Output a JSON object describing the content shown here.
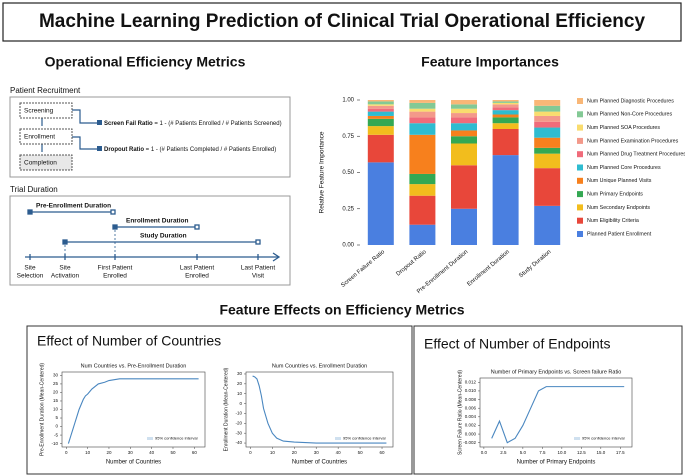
{
  "title": "Machine Learning Prediction of Clinical Trial Operational Efficiency",
  "metrics": {
    "heading": "Operational Efficiency Metrics",
    "recruitment": {
      "label": "Patient Recruitment",
      "nodes": [
        "Screening",
        "Enrollment",
        "Completion"
      ],
      "formulas": [
        {
          "name": "Screen Fail Ratio",
          "expr": "= 1 - (# Patients Enrolled / # Patients Screened)"
        },
        {
          "name": "Dropout Ratio",
          "expr": "= 1 - (# Patients Completed / # Patients Enrolled)"
        }
      ]
    },
    "duration": {
      "label": "Trial Duration",
      "spans": [
        "Pre-Enrollment Duration",
        "Enrollment Duration",
        "Study Duration"
      ],
      "milestones": [
        [
          "Site",
          "Selection"
        ],
        [
          "Site",
          "Activation"
        ],
        [
          "First Patient",
          "Enrolled"
        ],
        [
          "Last Patient",
          "Enrolled"
        ],
        [
          "Last Patient",
          "Visit"
        ]
      ]
    }
  },
  "importances_heading": "Feature Importances",
  "effects": {
    "heading": "Feature Effects on Efficiency Metrics",
    "panels": [
      "Effect of Number of Countries",
      "Effect of Number of Endpoints"
    ]
  },
  "chart_data": [
    {
      "type": "bar",
      "stacked": true,
      "y_label": "Relative Feature Importance",
      "categories": [
        "Screen Failure Ratio",
        "Dropout Ratio",
        "Pre-Enrollment Duration",
        "Enrollment Duration",
        "Study Duration"
      ],
      "ylim": [
        0,
        1
      ],
      "yticks": [
        {
          "value": 0,
          "label": "0.00"
        },
        0.25,
        {
          "value": 0.5,
          "label": "0.50"
        },
        0.75,
        {
          "value": 1,
          "label": "1.00"
        }
      ],
      "series": [
        {
          "name": "Planned Patient Enrollment",
          "color": "#4a7fe0",
          "values": [
            0.57,
            0.14,
            0.25,
            0.62,
            0.27
          ]
        },
        {
          "name": "Num Eligibility Criteria",
          "color": "#e8473a",
          "values": [
            0.19,
            0.2,
            0.3,
            0.18,
            0.26
          ]
        },
        {
          "name": "Num Secondary Endpoints",
          "color": "#f2bd1d",
          "values": [
            0.06,
            0.08,
            0.15,
            0.04,
            0.1
          ]
        },
        {
          "name": "Num Primary Endpoints",
          "color": "#34a853",
          "values": [
            0.05,
            0.07,
            0.05,
            0.04,
            0.04
          ]
        },
        {
          "name": "Num Unique Planned Visits",
          "color": "#f7801d",
          "values": [
            0.02,
            0.27,
            0.04,
            0.02,
            0.07
          ]
        },
        {
          "name": "Num Planned Core Procedures",
          "color": "#2fbcd0",
          "values": [
            0.03,
            0.08,
            0.05,
            0.03,
            0.07
          ]
        },
        {
          "name": "Num Planned Drug Treatment Procedures",
          "color": "#f06b7a",
          "values": [
            0.02,
            0.04,
            0.04,
            0.02,
            0.04
          ]
        },
        {
          "name": "Num Planned Examination Procedures",
          "color": "#f3998a",
          "values": [
            0.02,
            0.04,
            0.03,
            0.02,
            0.04
          ]
        },
        {
          "name": "Num Planned SOA Procedures",
          "color": "#f9dc6e",
          "values": [
            0.01,
            0.02,
            0.03,
            0.01,
            0.03
          ]
        },
        {
          "name": "Num Planned Non-Core Procedures",
          "color": "#83c995",
          "values": [
            0.02,
            0.04,
            0.03,
            0.01,
            0.04
          ]
        },
        {
          "name": "Num Planned Diagnostic Procedures",
          "color": "#f9b777",
          "values": [
            0.01,
            0.02,
            0.03,
            0.01,
            0.04
          ]
        }
      ]
    },
    {
      "type": "line",
      "title": "Num Countries vs. Pre-Enrollment Duration",
      "x_label": "Number of Countries",
      "y_label": "Pre-Enrollment Duration (Mean-Centered)",
      "ci_label": "95% confidence interval",
      "color": "#4a87c0",
      "x": [
        1,
        2,
        3,
        4,
        5,
        6,
        7,
        8,
        9,
        10,
        12,
        15,
        18,
        20,
        25,
        30,
        40,
        50,
        62
      ],
      "values": [
        -10,
        -6,
        -2,
        2,
        6,
        10,
        13,
        16,
        18,
        19,
        22,
        25,
        26,
        27,
        28,
        28,
        28,
        28,
        28
      ],
      "xlim": [
        -2,
        65
      ],
      "xticks": [
        0,
        10,
        20,
        30,
        40,
        50,
        60
      ],
      "ylim": [
        -12,
        32
      ],
      "yticks": [
        -10,
        -5,
        0,
        5,
        10,
        15,
        20,
        25,
        30
      ]
    },
    {
      "type": "line",
      "title": "Num Countries vs. Enrollment Duration",
      "x_label": "Number of Countries",
      "y_label": "Enrollment Duration (Mean-Centered)",
      "ci_label": "95% confidence interval",
      "color": "#4a87c0",
      "x": [
        1,
        2,
        3,
        4,
        5,
        6,
        8,
        10,
        12,
        15,
        20,
        30,
        40,
        50,
        62
      ],
      "values": [
        28,
        27,
        25,
        18,
        8,
        -5,
        -20,
        -30,
        -35,
        -38,
        -39,
        -40,
        -40,
        -40,
        -40
      ],
      "xlim": [
        -2,
        65
      ],
      "xticks": [
        0,
        10,
        20,
        30,
        40,
        50,
        60
      ],
      "ylim": [
        -44,
        32
      ],
      "yticks": [
        -40,
        -30,
        -20,
        -10,
        0,
        10,
        20,
        30
      ]
    },
    {
      "type": "line",
      "title": "Number of Primary Endpoints vs. Screen failure Ratio",
      "x_label": "Number of Primary Endpoints",
      "y_label": "Screen Failure Ratio (Mean-Centered)",
      "ci_label": "95% confidence interval",
      "color": "#4a87c0",
      "x": [
        1,
        2,
        3,
        4,
        5,
        6,
        7,
        8,
        10,
        12,
        15,
        18
      ],
      "values": [
        -0.001,
        0.003,
        -0.002,
        -0.001,
        0.002,
        0.006,
        0.01,
        0.011,
        0.011,
        0.011,
        0.011,
        0.011
      ],
      "xlim": [
        -0.5,
        19
      ],
      "xticks": [
        {
          "value": 0,
          "label": "0.0"
        },
        2.5,
        {
          "value": 5,
          "label": "5.0"
        },
        7.5,
        {
          "value": 10,
          "label": "10.0"
        },
        12.5,
        {
          "value": 15,
          "label": "15.0"
        },
        17.5
      ],
      "ylim": [
        -0.003,
        0.013
      ],
      "yticks": [
        -0.002,
        {
          "value": 0,
          "label": "0.000"
        },
        0.002,
        0.004,
        0.006,
        0.008,
        {
          "value": 0.01,
          "label": "0.010"
        },
        0.012
      ]
    }
  ]
}
